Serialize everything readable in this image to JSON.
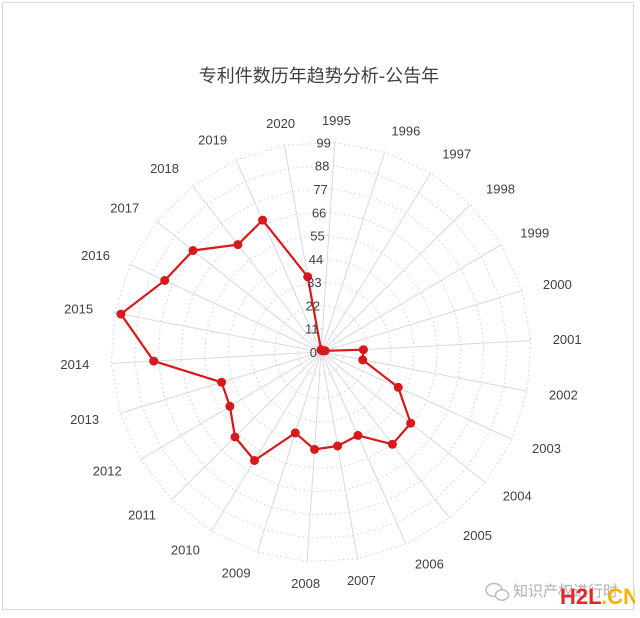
{
  "chart_data": {
    "type": "radar",
    "title": "专利件数历年趋势分析-公告年",
    "categories": [
      "1995",
      "1996",
      "1997",
      "1998",
      "1999",
      "2000",
      "2001",
      "2002",
      "2003",
      "2004",
      "2005",
      "2006",
      "2007",
      "2008",
      "2009",
      "2010",
      "2011",
      "2012",
      "2013",
      "2014",
      "2015",
      "2016",
      "2017",
      "2018",
      "2019",
      "2020"
    ],
    "values": [
      1,
      1,
      1,
      1,
      1,
      2,
      20,
      20,
      40,
      54,
      55,
      43,
      45,
      46,
      40,
      60,
      57,
      50,
      49,
      79,
      96,
      81,
      77,
      64,
      68,
      36
    ],
    "ticks": [
      "0",
      "11",
      "22",
      "33",
      "44",
      "55",
      "66",
      "77",
      "88",
      "99"
    ],
    "rmax": 99,
    "color": "#d7191c",
    "grid": "dotted"
  },
  "watermark": {
    "text": "知识产权进行时",
    "site_a": "H2L",
    "site_b": ".CN"
  }
}
